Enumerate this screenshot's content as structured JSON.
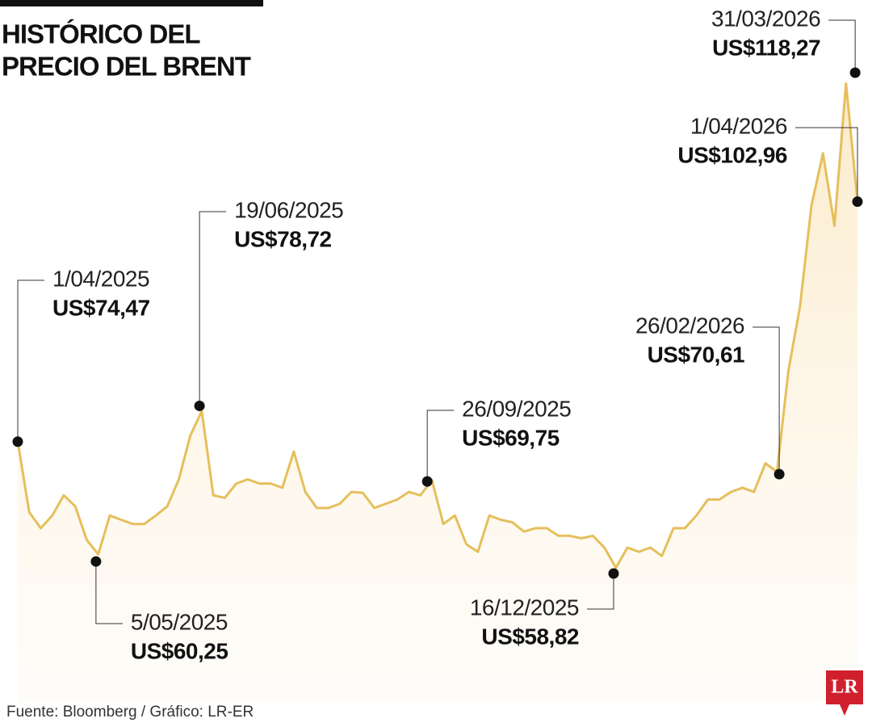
{
  "chart_data": {
    "type": "line",
    "title": [
      "HISTÓRICO DEL",
      "PRECIO DEL BRENT"
    ],
    "color": "#e6bf5c",
    "values": [
      74.47,
      66.1,
      64.2,
      65.7,
      68.1,
      66.8,
      62.8,
      61.1,
      65.7,
      65.2,
      64.7,
      64.7,
      65.7,
      66.8,
      70.0,
      75.2,
      78.1,
      68.1,
      67.8,
      69.5,
      70.0,
      69.5,
      69.5,
      69.0,
      73.3,
      68.5,
      66.6,
      66.6,
      67.1,
      68.5,
      68.4,
      66.6,
      67.1,
      67.6,
      68.5,
      68.1,
      69.9,
      64.7,
      65.7,
      62.3,
      61.4,
      65.7,
      65.2,
      64.9,
      63.8,
      64.2,
      64.2,
      63.3,
      63.3,
      63.0,
      63.3,
      61.9,
      59.5,
      61.9,
      61.4,
      61.9,
      60.9,
      64.2,
      64.2,
      65.7,
      67.6,
      67.6,
      68.5,
      69.0,
      68.5,
      71.9,
      70.9,
      82.9,
      90.5,
      102.5,
      108.7,
      100.1,
      117.0,
      102.96
    ],
    "annotations": [
      {
        "date": "1/04/2025",
        "value": 74.47,
        "value_label": "US$74,47"
      },
      {
        "date": "5/05/2025",
        "value": 60.25,
        "value_label": "US$60,25"
      },
      {
        "date": "19/06/2025",
        "value": 78.72,
        "value_label": "US$78,72"
      },
      {
        "date": "26/09/2025",
        "value": 69.75,
        "value_label": "US$69,75"
      },
      {
        "date": "16/12/2025",
        "value": 58.82,
        "value_label": "US$58,82"
      },
      {
        "date": "26/02/2026",
        "value": 70.61,
        "value_label": "US$70,61"
      },
      {
        "date": "31/03/2026",
        "value": 118.27,
        "value_label": "US$118,27"
      },
      {
        "date": "1/04/2026",
        "value": 102.96,
        "value_label": "US$102,96"
      }
    ],
    "source": "Fuente: Bloomberg / Gráfico: LR-ER",
    "logo": "LR"
  }
}
